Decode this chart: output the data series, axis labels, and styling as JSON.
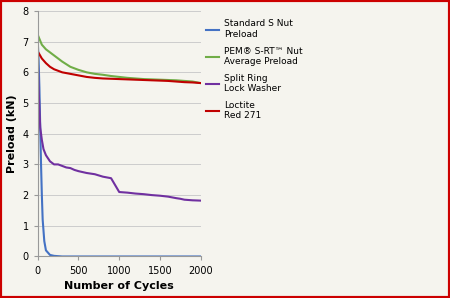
{
  "title": "",
  "xlabel": "Number of Cycles",
  "ylabel": "Preload (kN)",
  "xlim": [
    0,
    2000
  ],
  "ylim": [
    0,
    8
  ],
  "xticks": [
    0,
    500,
    1000,
    1500,
    2000
  ],
  "yticks": [
    0,
    1,
    2,
    3,
    4,
    5,
    6,
    7,
    8
  ],
  "background_color": "#f5f4ee",
  "border_color": "#cc0000",
  "series": {
    "standard_s_nut": {
      "label": "Standard S Nut\nPreload",
      "color": "#4472c4",
      "x": [
        0,
        10,
        20,
        30,
        40,
        50,
        60,
        80,
        100,
        150,
        200,
        250,
        300,
        350,
        400,
        500,
        600,
        700,
        800,
        1000,
        1200,
        1500,
        2000
      ],
      "y": [
        7.0,
        6.4,
        5.5,
        4.2,
        3.0,
        2.0,
        1.2,
        0.5,
        0.2,
        0.05,
        0.02,
        0.01,
        0.0,
        0.0,
        0.0,
        0.0,
        0.0,
        0.0,
        0.0,
        0.0,
        0.0,
        0.0,
        0.0
      ]
    },
    "pem_s_rt_nut": {
      "label": "PEM® S-RT™ Nut\nAverage Preload",
      "color": "#70ad47",
      "x": [
        0,
        50,
        100,
        200,
        300,
        400,
        500,
        600,
        700,
        800,
        900,
        1000,
        1100,
        1200,
        1300,
        1400,
        1500,
        1600,
        1700,
        1800,
        1900,
        2000
      ],
      "y": [
        7.22,
        6.9,
        6.75,
        6.55,
        6.35,
        6.18,
        6.08,
        6.0,
        5.95,
        5.92,
        5.88,
        5.85,
        5.82,
        5.8,
        5.78,
        5.77,
        5.76,
        5.75,
        5.74,
        5.72,
        5.7,
        5.65
      ]
    },
    "split_ring": {
      "label": "Split Ring\nLock Washer",
      "color": "#7030a0",
      "x": [
        0,
        10,
        20,
        30,
        50,
        70,
        100,
        150,
        200,
        250,
        300,
        350,
        400,
        450,
        500,
        600,
        700,
        800,
        900,
        1000,
        1100,
        1200,
        1300,
        1400,
        1500,
        1600,
        1700,
        1750,
        1800,
        1900,
        2000
      ],
      "y": [
        6.5,
        5.5,
        4.8,
        4.2,
        3.8,
        3.5,
        3.3,
        3.1,
        3.0,
        3.0,
        2.95,
        2.9,
        2.88,
        2.82,
        2.78,
        2.72,
        2.68,
        2.6,
        2.55,
        2.1,
        2.08,
        2.05,
        2.03,
        2.0,
        1.98,
        1.95,
        1.9,
        1.88,
        1.85,
        1.83,
        1.82
      ]
    },
    "loctite": {
      "label": "Loctite\nRed 271",
      "color": "#c00000",
      "x": [
        0,
        50,
        100,
        150,
        200,
        300,
        400,
        500,
        600,
        700,
        800,
        900,
        1000,
        1100,
        1200,
        1300,
        1400,
        1500,
        1600,
        1700,
        1800,
        1900,
        2000
      ],
      "y": [
        6.68,
        6.45,
        6.3,
        6.18,
        6.1,
        6.0,
        5.95,
        5.9,
        5.85,
        5.82,
        5.8,
        5.79,
        5.78,
        5.77,
        5.76,
        5.75,
        5.74,
        5.73,
        5.72,
        5.7,
        5.68,
        5.67,
        5.65
      ]
    }
  },
  "legend_order": [
    "standard_s_nut",
    "pem_s_rt_nut",
    "split_ring",
    "loctite"
  ],
  "grid_color": "#cccccc",
  "grid_linewidth": 0.7
}
